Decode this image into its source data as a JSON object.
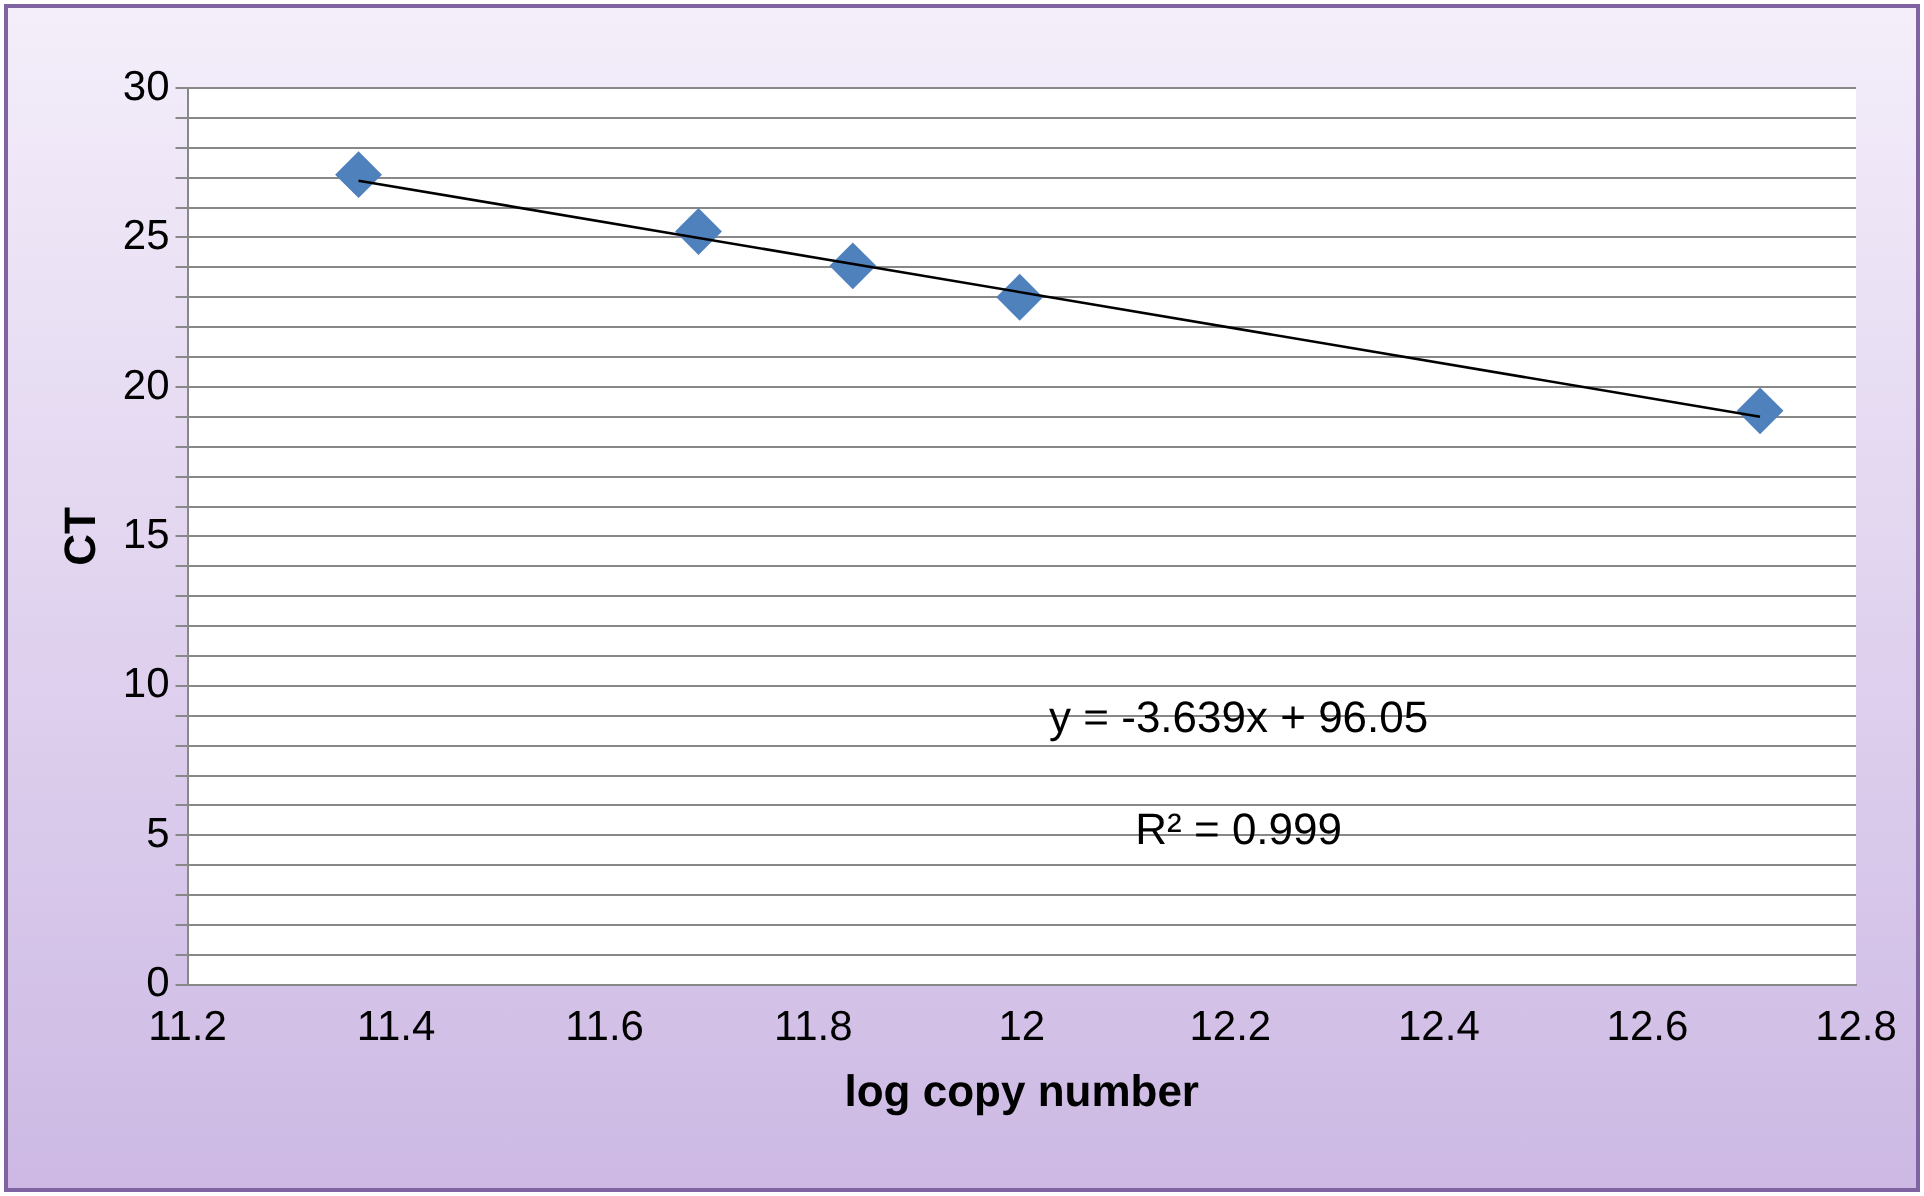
{
  "chart_data": {
    "type": "scatter",
    "xlabel": "log copy number",
    "ylabel": "CT",
    "xlim": [
      11.2,
      12.8
    ],
    "xticks": [
      11.2,
      11.4,
      11.6,
      11.8,
      12,
      12.2,
      12.4,
      12.6,
      12.8
    ],
    "ylim": [
      0,
      30
    ],
    "yticks": [
      0,
      {
        "value": 1,
        "label": null
      },
      {
        "value": 2,
        "label": null
      },
      {
        "value": 3,
        "label": null
      },
      {
        "value": 4,
        "label": null
      },
      5,
      {
        "value": 6,
        "label": null
      },
      {
        "value": 7,
        "label": null
      },
      {
        "value": 8,
        "label": null
      },
      {
        "value": 9,
        "label": null
      },
      10,
      {
        "value": 11,
        "label": null
      },
      {
        "value": 12,
        "label": null
      },
      {
        "value": 13,
        "label": null
      },
      {
        "value": 14,
        "label": null
      },
      15,
      {
        "value": 16,
        "label": null
      },
      {
        "value": 17,
        "label": null
      },
      {
        "value": 18,
        "label": null
      },
      {
        "value": 19,
        "label": null
      },
      20,
      {
        "value": 21,
        "label": null
      },
      {
        "value": 22,
        "label": null
      },
      {
        "value": 23,
        "label": null
      },
      {
        "value": 24,
        "label": null
      },
      25,
      {
        "value": 26,
        "label": null
      },
      {
        "value": 27,
        "label": null
      },
      {
        "value": 28,
        "label": null
      },
      {
        "value": 29,
        "label": null
      },
      30
    ],
    "grid": "y",
    "legend": false,
    "marker": "diamond",
    "series": [
      {
        "color": "#4f81bd",
        "x": [
          11.364,
          11.69,
          11.838,
          11.998,
          12.708
        ],
        "values": [
          27.1,
          25.2,
          24.05,
          23.0,
          19.2
        ]
      },
      {
        "type": "line",
        "marker": "none",
        "color": "#000000",
        "x": [
          11.364,
          12.708
        ],
        "values": [
          26.9,
          19.0
        ]
      }
    ],
    "annotations": [
      "y = -3.639x + 96.05",
      "R² = 0.999"
    ]
  }
}
